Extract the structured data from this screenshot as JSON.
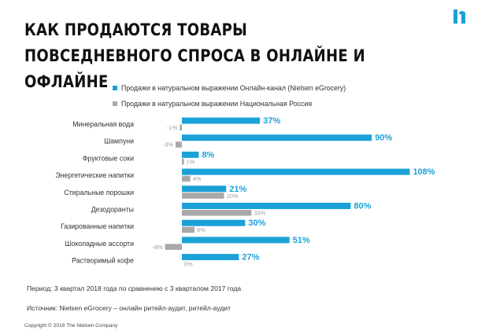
{
  "page": {
    "title": "КАК ПРОДАЮТСЯ ТОВАРЫ ПОВСЕДНЕВНОГО СПРОСА В ОНЛАЙНЕ И ОФЛАЙНЕ",
    "logo_icon": "nielsen-logo-icon",
    "period_note": "Период: 3 квартал 2018 года по сравнению с 3 кварталом 2017 года",
    "source_note": "Источник: Nielsen eGrocery – онлайн ритейл-аудит, ритейл-аудит",
    "copyright": "Copyright © 2018 The Nielsen Company"
  },
  "colors": {
    "online": "#1ba1d8",
    "national": "#a9a9a9",
    "logo": "#1ba1d8"
  },
  "chart_data": {
    "type": "bar",
    "orientation": "horizontal",
    "categories": [
      "Минеральная вода",
      "Шампуни",
      "Фруктовые соки",
      "Энергетические напитки",
      "Стиральные порошки",
      "Дезодоранты",
      "Газированные напитки",
      "Шоколадные ассорти",
      "Растворимый кофе"
    ],
    "series": [
      {
        "name": "Продажи в натуральном выражении Онлайн-канал (Nielsen eGrocery)",
        "values": [
          37,
          90,
          8,
          108,
          21,
          80,
          30,
          51,
          27
        ],
        "labels": [
          "37%",
          "90%",
          "8%",
          "108%",
          "21%",
          "80%",
          "30%",
          "51%",
          "27%"
        ]
      },
      {
        "name": "Продажи в натуральном выражении Национальная Россия",
        "values": [
          -1,
          -3,
          1,
          4,
          20,
          33,
          6,
          -8,
          0
        ],
        "labels": [
          "-1%",
          "-3%",
          "1%",
          "4%",
          "20%",
          "33%",
          "6%",
          "-8%",
          "0%"
        ]
      }
    ],
    "legend_position": "top",
    "grid": false
  }
}
